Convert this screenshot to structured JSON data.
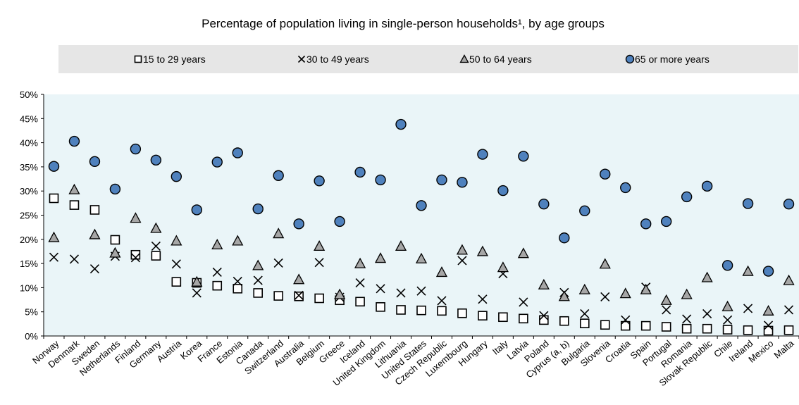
{
  "chart_data": {
    "type": "scatter",
    "title": "Percentage of population living in single-person households¹, by age groups",
    "xlabel": "",
    "ylabel": "",
    "ylim": [
      0,
      50
    ],
    "yticks": [
      "0%",
      "5%",
      "10%",
      "15%",
      "20%",
      "25%",
      "30%",
      "35%",
      "40%",
      "45%",
      "50%"
    ],
    "grid": false,
    "legend_position": "top",
    "categories": [
      "Norway",
      "Denmark",
      "Sweden",
      "Netherlands",
      "Finland",
      "Germany",
      "Austria",
      "Korea",
      "France",
      "Estonia",
      "Canada",
      "Switzerland",
      "Australia",
      "Belgium",
      "Greece",
      "Iceland",
      "United Kingdom",
      "Lithuania",
      "United States",
      "Czech Republic",
      "Luxembourg",
      "Hungary",
      "Italy",
      "Latvia",
      "Poland",
      "Cyprus (a, b)",
      "Bulgaria",
      "Slovenia",
      "Croatia",
      "Spain",
      "Portugal",
      "Romania",
      "Slovak Republic",
      "Chile",
      "Ireland",
      "Mexico",
      "Malta"
    ],
    "series": [
      {
        "name": "15 to 29 years",
        "marker": "square",
        "color": "#ffffff",
        "values": [
          28.5,
          27.1,
          26.1,
          19.9,
          16.8,
          16.6,
          11.2,
          11.0,
          10.4,
          9.8,
          8.9,
          8.3,
          8.2,
          7.8,
          7.4,
          7.1,
          6.0,
          5.4,
          5.3,
          5.2,
          4.7,
          4.2,
          3.9,
          3.6,
          3.3,
          3.1,
          2.6,
          2.3,
          2.1,
          2.1,
          1.9,
          1.5,
          1.5,
          1.3,
          1.2,
          1.1,
          1.2
        ]
      },
      {
        "name": "30 to 49 years",
        "marker": "x",
        "color": "#000000",
        "values": [
          16.3,
          15.9,
          13.9,
          16.5,
          16.2,
          18.6,
          14.9,
          8.9,
          13.2,
          11.3,
          11.5,
          15.1,
          8.4,
          15.2,
          8.0,
          11.0,
          9.8,
          8.9,
          9.3,
          7.3,
          15.6,
          7.6,
          12.9,
          7.0,
          4.2,
          9.0,
          4.6,
          8.1,
          3.3,
          10.1,
          5.4,
          3.5,
          4.6,
          3.3,
          5.7,
          2.2,
          5.4
        ]
      },
      {
        "name": "50 to 64 years",
        "marker": "triangle",
        "color": "#a6a6a6",
        "values": [
          20.4,
          30.3,
          21.0,
          17.2,
          24.4,
          22.3,
          19.7,
          11.2,
          18.9,
          19.7,
          14.6,
          21.2,
          11.7,
          18.6,
          8.6,
          15.0,
          16.1,
          18.6,
          16.0,
          13.2,
          17.8,
          17.5,
          14.2,
          17.1,
          10.6,
          8.2,
          9.6,
          14.9,
          8.8,
          9.6,
          7.4,
          8.6,
          12.1,
          6.1,
          13.4,
          5.2,
          11.5
        ]
      },
      {
        "name": "65 or more years",
        "marker": "circle",
        "color": "#4f81bd",
        "values": [
          35.1,
          40.3,
          36.1,
          30.4,
          38.7,
          36.4,
          33.0,
          26.1,
          36.0,
          37.9,
          26.3,
          33.2,
          23.2,
          32.1,
          23.7,
          33.9,
          32.3,
          43.8,
          27.0,
          32.3,
          31.8,
          37.6,
          30.1,
          37.2,
          27.3,
          20.3,
          25.9,
          33.5,
          30.7,
          23.2,
          23.7,
          28.8,
          31.0,
          14.6,
          27.4,
          13.4,
          27.3
        ]
      }
    ]
  }
}
